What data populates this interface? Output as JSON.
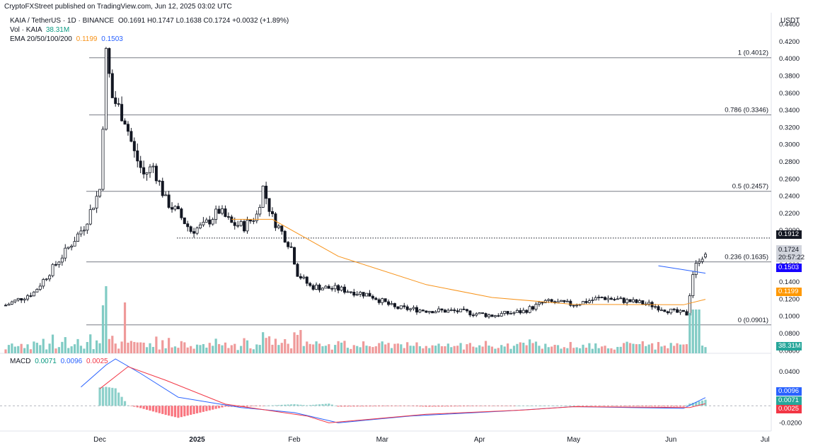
{
  "publisher": "CryptoFXStreet published on TradingView.com, Jun 12, 2025 03:02 UTC",
  "legend": {
    "symbol": "KAIA / TetherUS · 1D · BINANCE",
    "ohlc": "O0.1691 H0.1747 L0.1638 C0.1724 +0.0032 (+1.89%)",
    "vol_label": "Vol · KAIA",
    "vol_value": "38.31M",
    "ema_label": "EMA 20/50/100/200",
    "ema_fast": "0.1199",
    "ema_slow": "0.1503"
  },
  "macd_legend": {
    "label": "MACD",
    "v1": "0.0071",
    "v2": "0.0096",
    "v3": "0.0025"
  },
  "currency": "USDT",
  "badges": {
    "level": "0.1912",
    "price": "0.1724",
    "countdown": "20:57:22",
    "ema_blue": "0.1503",
    "ema_orange": "0.1199",
    "volume": "38.31M",
    "macd_blue": "0.0096",
    "macd_teal": "0.0071",
    "macd_red": "0.0025"
  },
  "colors": {
    "up": "#089981",
    "down": "#f23645",
    "candle": "#131722",
    "ema_orange": "#f7931a",
    "ema_blue": "#2962ff",
    "macd_line": "#2962ff",
    "signal_line": "#f23645",
    "volume_up": "#80cbc4",
    "volume_down": "#ef9a9a"
  },
  "chart_data": [
    {
      "type": "candlestick",
      "title": "KAIA / TetherUS · 1D · BINANCE",
      "y_axis_ticks": [
        "0.4400",
        "0.4200",
        "0.4000",
        "0.3800",
        "0.3600",
        "0.3400",
        "0.3200",
        "0.3000",
        "0.2800",
        "0.2600",
        "0.2400",
        "0.2200",
        "0.2000",
        "0.1800",
        "0.1600",
        "0.1400",
        "0.1200",
        "0.1000",
        "0.0800",
        "0.0600"
      ],
      "ylim": [
        0.057,
        0.452
      ],
      "x_axis_ticks": [
        "Dec",
        "2025",
        "Feb",
        "Mar",
        "Apr",
        "May",
        "Jun",
        "Jul"
      ],
      "fibonacci": [
        {
          "label": "1 (0.4012)",
          "value": 0.4012
        },
        {
          "label": "0.786 (0.3346)",
          "value": 0.3346
        },
        {
          "label": "0.5 (0.2457)",
          "value": 0.2457
        },
        {
          "label": "0.236 (0.1635)",
          "value": 0.1635
        },
        {
          "label": "0 (0.0901)",
          "value": 0.0901
        }
      ],
      "dotted_level": 0.1912,
      "close_series": [
        {
          "date": "2024-11-01",
          "close": 0.113
        },
        {
          "date": "2024-11-10",
          "close": 0.128
        },
        {
          "date": "2024-11-20",
          "close": 0.175
        },
        {
          "date": "2024-11-26",
          "close": 0.205
        },
        {
          "date": "2024-12-01",
          "close": 0.248
        },
        {
          "date": "2024-12-03",
          "close": 0.405
        },
        {
          "date": "2024-12-05",
          "close": 0.355
        },
        {
          "date": "2024-12-09",
          "close": 0.33
        },
        {
          "date": "2024-12-12",
          "close": 0.29
        },
        {
          "date": "2024-12-15",
          "close": 0.265
        },
        {
          "date": "2024-12-18",
          "close": 0.275
        },
        {
          "date": "2024-12-22",
          "close": 0.235
        },
        {
          "date": "2024-12-26",
          "close": 0.22
        },
        {
          "date": "2024-12-30",
          "close": 0.2
        },
        {
          "date": "2025-01-03",
          "close": 0.205
        },
        {
          "date": "2025-01-08",
          "close": 0.223
        },
        {
          "date": "2025-01-12",
          "close": 0.208
        },
        {
          "date": "2025-01-16",
          "close": 0.205
        },
        {
          "date": "2025-01-20",
          "close": 0.218
        },
        {
          "date": "2025-01-22",
          "close": 0.25
        },
        {
          "date": "2025-01-25",
          "close": 0.215
        },
        {
          "date": "2025-01-28",
          "close": 0.198
        },
        {
          "date": "2025-01-31",
          "close": 0.18
        },
        {
          "date": "2025-02-02",
          "close": 0.15
        },
        {
          "date": "2025-02-06",
          "close": 0.135
        },
        {
          "date": "2025-02-15",
          "close": 0.132
        },
        {
          "date": "2025-02-25",
          "close": 0.125
        },
        {
          "date": "2025-03-05",
          "close": 0.11
        },
        {
          "date": "2025-03-15",
          "close": 0.107
        },
        {
          "date": "2025-03-25",
          "close": 0.106
        },
        {
          "date": "2025-04-05",
          "close": 0.101
        },
        {
          "date": "2025-04-15",
          "close": 0.106
        },
        {
          "date": "2025-04-22",
          "close": 0.117
        },
        {
          "date": "2025-05-01",
          "close": 0.114
        },
        {
          "date": "2025-05-10",
          "close": 0.122
        },
        {
          "date": "2025-05-18",
          "close": 0.118
        },
        {
          "date": "2025-05-25",
          "close": 0.114
        },
        {
          "date": "2025-06-02",
          "close": 0.105
        },
        {
          "date": "2025-06-06",
          "close": 0.103
        },
        {
          "date": "2025-06-08",
          "close": 0.15
        },
        {
          "date": "2025-06-10",
          "close": 0.168
        },
        {
          "date": "2025-06-12",
          "close": 0.1724
        }
      ],
      "ema_orange_series": [
        {
          "date": "2025-01-12",
          "value": 0.213
        },
        {
          "date": "2025-01-25",
          "value": 0.213
        },
        {
          "date": "2025-02-15",
          "value": 0.17
        },
        {
          "date": "2025-03-15",
          "value": 0.137
        },
        {
          "date": "2025-04-05",
          "value": 0.122
        },
        {
          "date": "2025-05-01",
          "value": 0.114
        },
        {
          "date": "2025-06-05",
          "value": 0.1135
        },
        {
          "date": "2025-06-12",
          "value": 0.1199
        }
      ],
      "ema_blue_series": [
        {
          "date": "2025-05-28",
          "value": 0.159
        },
        {
          "date": "2025-06-12",
          "value": 0.1503
        }
      ]
    },
    {
      "type": "bar",
      "title": "Vol · KAIA",
      "last_value": "38.31M"
    },
    {
      "type": "line",
      "title": "MACD",
      "y_axis_ticks": [
        "0.0400",
        "-0.0200"
      ],
      "ylim": [
        -0.028,
        0.06
      ],
      "values": {
        "macd": 0.0096,
        "histogram": 0.0071,
        "signal": 0.0025
      },
      "macd_series": [
        {
          "date": "2024-11-25",
          "value": 0.022
        },
        {
          "date": "2024-12-03",
          "value": 0.048
        },
        {
          "date": "2024-12-06",
          "value": 0.055
        },
        {
          "date": "2024-12-14",
          "value": 0.038
        },
        {
          "date": "2024-12-26",
          "value": 0.01
        },
        {
          "date": "2025-01-15",
          "value": -0.002
        },
        {
          "date": "2025-02-01",
          "value": -0.008
        },
        {
          "date": "2025-02-15",
          "value": -0.02
        },
        {
          "date": "2025-03-10",
          "value": -0.012
        },
        {
          "date": "2025-04-10",
          "value": -0.006
        },
        {
          "date": "2025-05-01",
          "value": -0.001
        },
        {
          "date": "2025-06-05",
          "value": -0.003
        },
        {
          "date": "2025-06-12",
          "value": 0.0096
        }
      ],
      "signal_series": [
        {
          "date": "2024-12-01",
          "value": 0.02
        },
        {
          "date": "2024-12-10",
          "value": 0.046
        },
        {
          "date": "2024-12-22",
          "value": 0.03
        },
        {
          "date": "2025-01-10",
          "value": 0.002
        },
        {
          "date": "2025-02-05",
          "value": -0.012
        },
        {
          "date": "2025-02-12",
          "value": -0.02
        },
        {
          "date": "2025-03-15",
          "value": -0.01
        },
        {
          "date": "2025-04-15",
          "value": -0.005
        },
        {
          "date": "2025-05-01",
          "value": -0.001
        },
        {
          "date": "2025-06-07",
          "value": -0.002
        },
        {
          "date": "2025-06-12",
          "value": 0.0025
        }
      ]
    }
  ]
}
